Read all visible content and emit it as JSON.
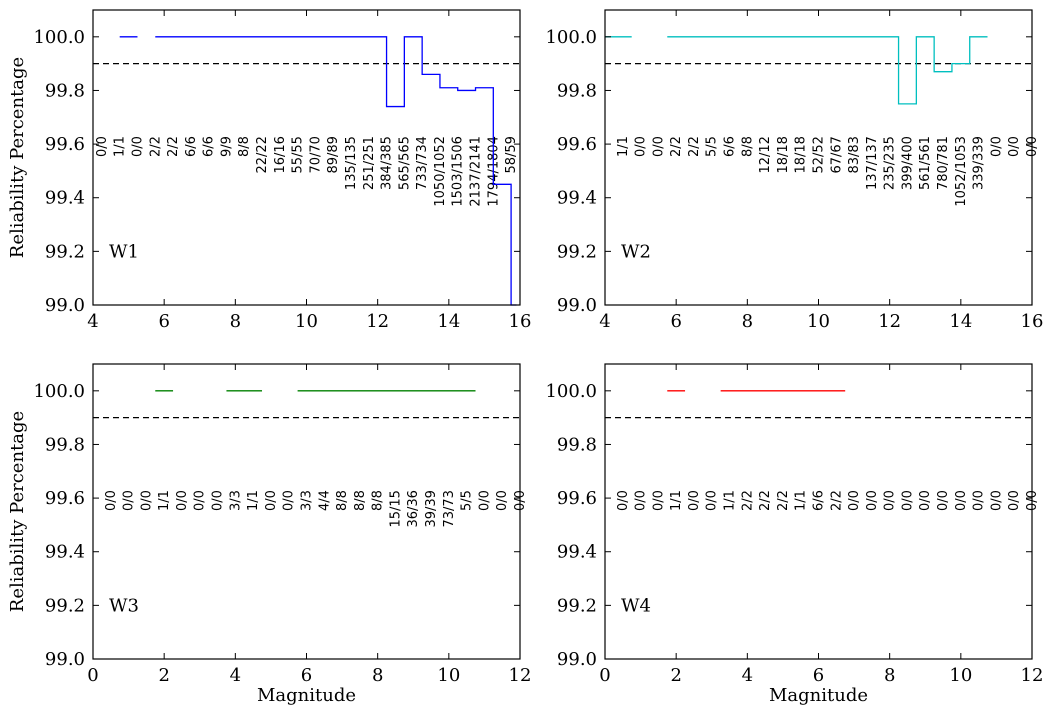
{
  "chart_data": [
    {
      "type": "line",
      "panel_label": "W1",
      "xlabel": "",
      "ylabel": "Reliability Percentage",
      "xlim": [
        4,
        16
      ],
      "ylim": [
        99.0,
        100.1
      ],
      "xticks": [
        "4",
        "6",
        "8",
        "10",
        "12",
        "14",
        "16"
      ],
      "yticks": [
        "99.0",
        "99.2",
        "99.4",
        "99.6",
        "99.8",
        "100.0"
      ],
      "reference_line": 99.9,
      "color": "#0000ff",
      "bin_width": 0.5,
      "bin_start": 4.25,
      "segments": [
        {
          "x": [
            4.75,
            5.25
          ],
          "y": [
            100.0,
            100.0
          ]
        },
        {
          "x": [
            5.75,
            12.25,
            12.25,
            12.75,
            12.75,
            13.25,
            13.25,
            13.75,
            13.75,
            14.25,
            14.25,
            14.75,
            14.75,
            15.25,
            15.25,
            15.75,
            15.75,
            15.9
          ],
          "y": [
            100.0,
            100.0,
            99.74,
            99.74,
            100.0,
            100.0,
            99.86,
            99.86,
            99.81,
            99.81,
            99.8,
            99.8,
            99.81,
            99.81,
            99.45,
            99.45,
            99.0,
            99.0
          ]
        }
      ],
      "counts": [
        "0/0",
        "1/1",
        "0/0",
        "2/2",
        "2/2",
        "6/6",
        "6/6",
        "9/9",
        "8/8",
        "22/22",
        "16/16",
        "55/55",
        "70/70",
        "89/89",
        "135/135",
        "251/251",
        "384/385",
        "565/565",
        "733/734",
        "1050/1052",
        "1503/1506",
        "2137/2141",
        "1794/1804",
        "58/59"
      ]
    },
    {
      "type": "line",
      "panel_label": "W2",
      "xlabel": "",
      "ylabel": "",
      "xlim": [
        4,
        16
      ],
      "ylim": [
        99.0,
        100.1
      ],
      "xticks": [
        "4",
        "6",
        "8",
        "10",
        "12",
        "14",
        "16"
      ],
      "yticks": [
        "99.0",
        "99.2",
        "99.4",
        "99.6",
        "99.8",
        "100.0"
      ],
      "reference_line": 99.9,
      "color": "#00bfbf",
      "bin_width": 0.5,
      "bin_start": 4.5,
      "segments": [
        {
          "x": [
            4.0,
            4.75
          ],
          "y": [
            100.0,
            100.0
          ]
        },
        {
          "x": [
            5.75,
            12.25,
            12.25,
            12.75,
            12.75,
            13.25,
            13.25,
            13.75,
            13.75,
            14.25,
            14.25,
            14.75
          ],
          "y": [
            100.0,
            100.0,
            99.75,
            99.75,
            100.0,
            100.0,
            99.87,
            99.87,
            99.9,
            99.9,
            100.0,
            100.0
          ]
        }
      ],
      "counts": [
        "1/1",
        "0/0",
        "0/0",
        "2/2",
        "2/2",
        "5/5",
        "6/6",
        "8/8",
        "12/12",
        "18/18",
        "18/18",
        "52/52",
        "67/67",
        "83/83",
        "137/137",
        "235/235",
        "399/400",
        "561/561",
        "780/781",
        "1052/1053",
        "339/339",
        "0/0",
        "0/0",
        "0/0"
      ]
    },
    {
      "type": "line",
      "panel_label": "W3",
      "xlabel": "Magnitude",
      "ylabel": "Reliability Percentage",
      "xlim": [
        0,
        12
      ],
      "ylim": [
        99.0,
        100.1
      ],
      "xticks": [
        "0",
        "2",
        "4",
        "6",
        "8",
        "10",
        "12"
      ],
      "yticks": [
        "99.0",
        "99.2",
        "99.4",
        "99.6",
        "99.8",
        "100.0"
      ],
      "reference_line": 99.9,
      "color": "#008000",
      "bin_width": 0.5,
      "bin_start": 0.5,
      "segments": [
        {
          "x": [
            1.75,
            2.25
          ],
          "y": [
            100.0,
            100.0
          ]
        },
        {
          "x": [
            3.75,
            4.75
          ],
          "y": [
            100.0,
            100.0
          ]
        },
        {
          "x": [
            5.75,
            10.75
          ],
          "y": [
            100.0,
            100.0
          ]
        }
      ],
      "counts": [
        "0/0",
        "0/0",
        "0/0",
        "1/1",
        "0/0",
        "0/0",
        "0/0",
        "3/3",
        "1/1",
        "0/0",
        "0/0",
        "3/3",
        "4/4",
        "8/8",
        "8/8",
        "8/8",
        "15/15",
        "36/36",
        "39/39",
        "73/73",
        "5/5",
        "0/0",
        "0/0",
        "0/0"
      ]
    },
    {
      "type": "line",
      "panel_label": "W4",
      "xlabel": "Magnitude",
      "ylabel": "",
      "xlim": [
        0,
        12
      ],
      "ylim": [
        99.0,
        100.1
      ],
      "xticks": [
        "0",
        "2",
        "4",
        "6",
        "8",
        "10",
        "12"
      ],
      "yticks": [
        "99.0",
        "99.2",
        "99.4",
        "99.6",
        "99.8",
        "100.0"
      ],
      "reference_line": 99.9,
      "color": "#ff0000",
      "bin_width": 0.5,
      "bin_start": 0.5,
      "segments": [
        {
          "x": [
            1.75,
            2.25
          ],
          "y": [
            100.0,
            100.0
          ]
        },
        {
          "x": [
            3.25,
            6.75
          ],
          "y": [
            100.0,
            100.0
          ]
        }
      ],
      "counts": [
        "0/0",
        "0/0",
        "0/0",
        "1/1",
        "0/0",
        "0/0",
        "1/1",
        "2/2",
        "2/2",
        "2/2",
        "1/1",
        "6/6",
        "2/2",
        "0/0",
        "0/0",
        "0/0",
        "0/0",
        "0/0",
        "0/0",
        "0/0",
        "0/0",
        "0/0",
        "0/0",
        "0/0"
      ]
    }
  ]
}
